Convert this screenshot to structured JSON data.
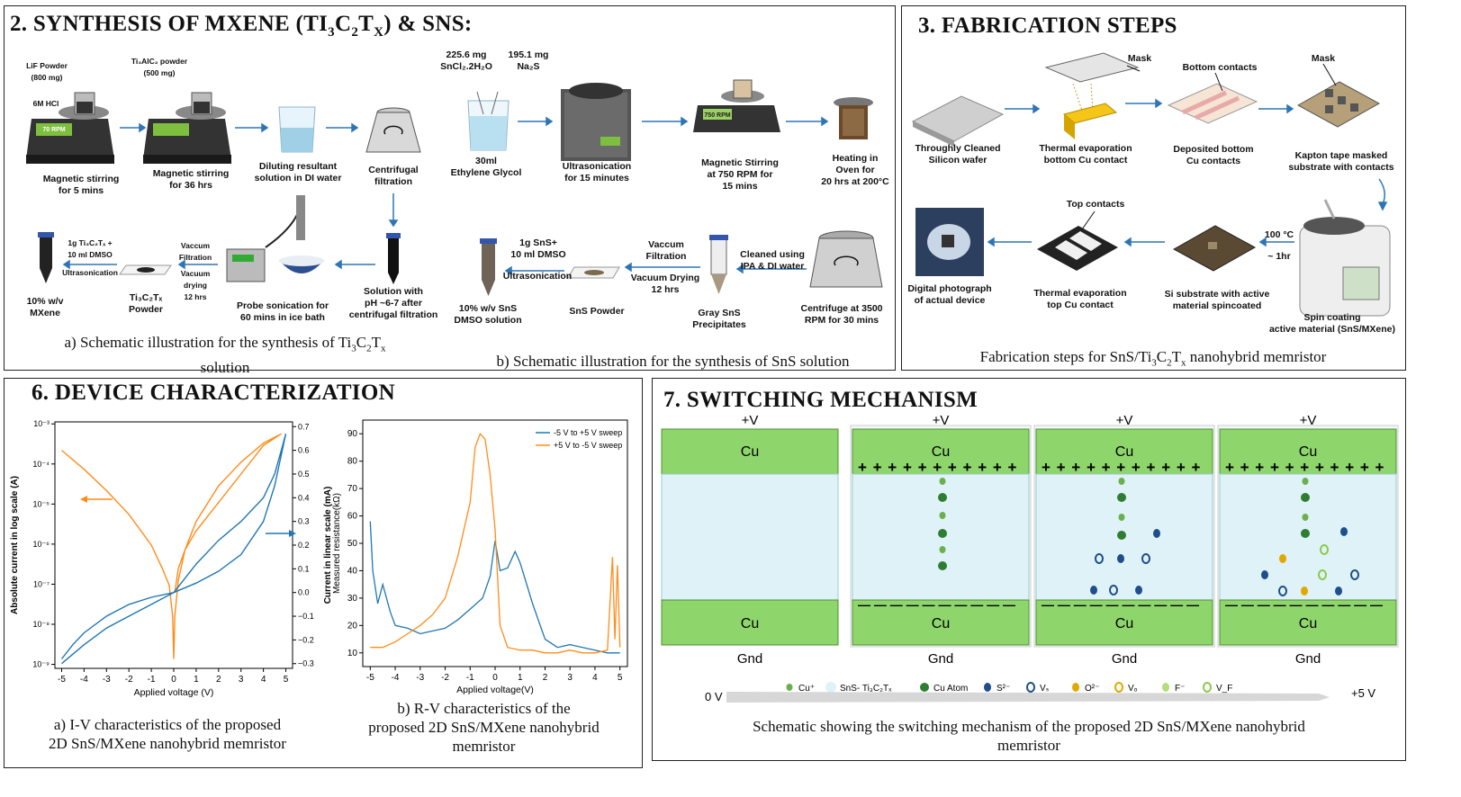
{
  "panels": {
    "synthesis": {
      "title": "2. SYNTHESIS OF MXENE (TI",
      "title_sub1": "3",
      "title_mid": "C",
      "title_sub2": "2",
      "title_t": "T",
      "title_subx": "X",
      "title_end": ") & SNS:",
      "caption_a": "a) Schematic illustration for the synthesis of Ti",
      "caption_a_sub1": "3",
      "caption_a_c": "C",
      "caption_a_sub2": "2",
      "caption_a_t": "T",
      "caption_a_subx": "x",
      "caption_a_line2": "solution",
      "caption_b": "b) Schematic illustration for the synthesis of SnS solution",
      "labels": {
        "lif": "LiF Powder\n(800 mg)",
        "hcl": "6M HCl",
        "ti3alc2": "Ti₃AlC₂ powder\n(500 mg)",
        "stir5": "Magnetic stirring\nfor 5 mins",
        "stir36": "Magnetic stirring\nfor 36 hrs",
        "dilute": "Diluting resultant\nsolution in DI water",
        "centri": "Centrifugal\nfiltration",
        "sncl": "225.6 mg\nSnCl₂.2H₂O",
        "na2s": "195.1 mg\nNa₂S",
        "eg": "30ml\nEthylene Glycol",
        "ultra15": "Ultrasonication\nfor 15 minutes",
        "stir750": "Magnetic Stirring\nat 750 RPM for\n15 mins",
        "oven": "Heating in\nOven for\n20 hrs at 200°C",
        "mxene10": "10% w/v\nMXene",
        "mx_ultra_top": "1g Ti₃C₂Tₓ +\n10 ml DMSO",
        "mx_ultra": "Ultrasonication",
        "vac1": "Vaccum\nFiltration",
        "vacdry1": "Vacuum drying\n12 hrs",
        "mxpowder": "Ti₃C₂Tₓ\nPowder",
        "probe": "Probe sonication for\n60 mins in ice bath",
        "ph": "Solution with\npH ~6-7 after\ncentrifugal filtration",
        "sns10": "10% w/v SnS\nDMSO solution",
        "sns_ultra_top": "1g SnS+\n10 ml DMSO",
        "sns_ultra": "Ultrasonication",
        "snspowder": "SnS Powder",
        "vac2": "Vaccum\nFiltration",
        "vacdry2": "Vacuum Drying\n12 hrs",
        "gray": "Gray SnS\nPrecipitates",
        "clean": "Cleaned using\nIPA & DI water",
        "centri3500": "Centrifuge at 3500\nRPM for 30 mins"
      },
      "device_readouts": {
        "stir1": "70 RPM",
        "stir2": "750 RPM"
      }
    },
    "fabrication": {
      "title": "3. FABRICATION STEPS",
      "caption": "Fabrication steps for SnS/Ti",
      "caption_sub1": "3",
      "caption_c": "C",
      "caption_sub2": "2",
      "caption_t": "T",
      "caption_subx": "x",
      "caption_end": " nanohybrid memristor",
      "labels": {
        "wafer": "Throughly Cleaned\nSilicon wafer",
        "mask1": "Mask",
        "therm1": "Thermal evaporation\nbottom Cu contact",
        "bottom": "Bottom contacts",
        "dep": "Deposited bottom\nCu contacts",
        "mask2": "Mask",
        "kapton": "Kapton tape masked\nsubstrate with contacts",
        "photo": "Digital photograph\nof actual device",
        "top": "Top contacts",
        "therm2": "Thermal evaporation\ntop Cu contact",
        "si": "Si substrate with active\nmaterial spincoated",
        "temp": "100 °C",
        "time": "~ 1hr",
        "spin": "Spin coating\nactive material (SnS/MXene)"
      }
    },
    "characterization": {
      "title": "6. DEVICE CHARACTERIZATION",
      "caption_a": "a) I-V characteristics of the proposed\n2D SnS/MXene nanohybrid memristor",
      "caption_b": "b) R-V characteristics of the\nproposed 2D SnS/MXene nanohybrid\nmemristor"
    },
    "switching": {
      "title": "7. SWITCHING MECHANISM",
      "top_label": "+V",
      "bottom_label": "Gnd",
      "electrode": "Cu",
      "plus_row": "+ + + + + + + + + + +",
      "minus_row": "— — — — — — — — — —",
      "legend": {
        "cu_ion": "Cu⁺",
        "matrix": "SnS- Ti₃C₂Tₓ",
        "cu_atom": "Cu Atom",
        "s": "S²⁻",
        "vs": "Vₛ",
        "o": "O²⁻",
        "vo": "Vₒ",
        "f": "F⁻",
        "vf": "V_F"
      },
      "scale_start": "0 V",
      "scale_end": "+5 V",
      "caption": "Schematic showing the switching mechanism of the proposed 2D SnS/MXene nanohybrid\nmemristor"
    }
  },
  "chart_data": [
    {
      "type": "line",
      "xlabel": "Applied voltage (V)",
      "ylabel": "Absolute current in log scale (A)",
      "y2label": "Current in linear scale (mA)",
      "xlim": [
        -5.3,
        5.3
      ],
      "ylim": [
        -9.1,
        -2.95
      ],
      "y2lim": [
        -0.32,
        0.72
      ],
      "xticks": [
        -5,
        -4,
        -3,
        -2,
        -1,
        0,
        1,
        2,
        3,
        4,
        5
      ],
      "yticks_log": [
        -9,
        -8,
        -7,
        -6,
        -5,
        -4,
        -3
      ],
      "yticks_log_labels": [
        "10⁻⁹",
        "10⁻⁸",
        "10⁻⁷",
        "10⁻⁶",
        "10⁻⁵",
        "10⁻⁴",
        "10⁻³"
      ],
      "yticks_lin": [
        -0.3,
        -0.2,
        -0.1,
        0.0,
        0.1,
        0.2,
        0.3,
        0.4,
        0.5,
        0.6,
        0.7
      ],
      "yticks_lin_labels": [
        "−0.3",
        "−0.2",
        "−0.1",
        "0.0",
        "0.1",
        "0.2",
        "0.3",
        "0.4",
        "0.5",
        "0.6",
        "0.7"
      ],
      "series": [
        {
          "color": "#ff8c1a",
          "x": [
            -5,
            -4,
            -3,
            -2,
            -1,
            -0.5,
            -0.2,
            -0.05,
            0.0,
            0.05,
            0.2,
            0.5,
            1,
            2,
            3,
            4,
            4.8,
            4,
            3,
            2,
            1,
            0.5,
            0.2,
            0.05
          ],
          "y": [
            0.6,
            0.52,
            0.43,
            0.33,
            0.2,
            0.1,
            0.03,
            -0.1,
            -0.28,
            -0.1,
            0.05,
            0.18,
            0.3,
            0.45,
            0.55,
            0.63,
            0.67,
            0.62,
            0.5,
            0.38,
            0.26,
            0.18,
            0.1,
            0.0
          ]
        },
        {
          "color": "#1f77b4",
          "x": [
            -5,
            -4.5,
            -4,
            -3,
            -2,
            -1,
            0,
            1,
            2,
            3,
            4,
            4.5,
            5,
            4.8,
            4.5,
            4,
            3,
            2,
            1,
            0,
            -1,
            -2,
            -3,
            -4,
            -5
          ],
          "y": [
            -0.28,
            -0.22,
            -0.17,
            -0.1,
            -0.05,
            -0.02,
            0.0,
            0.04,
            0.09,
            0.16,
            0.3,
            0.45,
            0.67,
            0.6,
            0.5,
            0.4,
            0.3,
            0.22,
            0.12,
            0.0,
            -0.05,
            -0.1,
            -0.15,
            -0.22,
            -0.3
          ]
        }
      ]
    },
    {
      "type": "line",
      "xlabel": "Applied voltage(V)",
      "ylabel": "Measured resistance(kΩ)",
      "xlim": [
        -5.3,
        5.3
      ],
      "ylim": [
        5,
        95
      ],
      "xticks": [
        -5,
        -4,
        -3,
        -2,
        -1,
        0,
        1,
        2,
        3,
        4,
        5
      ],
      "yticks": [
        10,
        20,
        30,
        40,
        50,
        60,
        70,
        80,
        90
      ],
      "legend_position": "top-right",
      "series": [
        {
          "name": "-5 V to +5 V sweep",
          "color": "#1f77b4",
          "x": [
            -5,
            -4.9,
            -4.7,
            -4.5,
            -4.2,
            -4,
            -3.5,
            -3,
            -2.5,
            -2,
            -1.5,
            -1,
            -0.5,
            -0.2,
            0,
            0.2,
            0.5,
            0.8,
            1,
            1.5,
            2,
            2.5,
            3,
            3.5,
            4,
            4.5,
            5
          ],
          "y": [
            58,
            40,
            28,
            35,
            25,
            20,
            19,
            17,
            18,
            19,
            22,
            26,
            30,
            38,
            51,
            40,
            41,
            47,
            43,
            28,
            15,
            12,
            13,
            12,
            11,
            10,
            10
          ]
        },
        {
          "name": "+5 V to -5 V sweep",
          "color": "#ff8c1a",
          "x": [
            -5,
            -4.5,
            -4,
            -3.5,
            -3,
            -2.5,
            -2,
            -1.5,
            -1,
            -0.8,
            -0.6,
            -0.4,
            -0.2,
            0,
            0.2,
            0.5,
            1,
            1.5,
            2,
            2.5,
            3,
            3.5,
            4,
            4.5,
            4.7,
            4.8,
            4.9,
            5
          ],
          "y": [
            12,
            12,
            14,
            17,
            20,
            24,
            30,
            45,
            65,
            85,
            90,
            88,
            75,
            55,
            20,
            12,
            11,
            11,
            10,
            10,
            11,
            10,
            10,
            11,
            45,
            15,
            42,
            12
          ]
        }
      ]
    }
  ]
}
